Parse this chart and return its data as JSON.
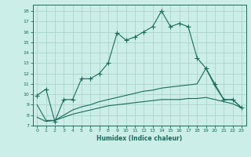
{
  "xlabel": "Humidex (Indice chaleur)",
  "background_color": "#cceee8",
  "grid_color": "#aad4cc",
  "line_color": "#1a6b5a",
  "xlim": [
    -0.5,
    23.5
  ],
  "ylim": [
    7,
    18.6
  ],
  "xticks": [
    0,
    1,
    2,
    3,
    4,
    5,
    6,
    7,
    8,
    9,
    10,
    11,
    12,
    13,
    14,
    15,
    16,
    17,
    18,
    19,
    20,
    21,
    22,
    23
  ],
  "yticks": [
    7,
    8,
    9,
    10,
    11,
    12,
    13,
    14,
    15,
    16,
    17,
    18
  ],
  "line1_x": [
    0,
    1,
    2,
    3,
    4,
    5,
    6,
    7,
    8,
    9,
    10,
    11,
    12,
    13,
    14,
    15,
    16,
    17,
    18,
    19,
    20,
    21,
    22,
    23
  ],
  "line1_y": [
    9.9,
    10.5,
    7.4,
    9.5,
    9.5,
    11.5,
    11.5,
    12.0,
    13.0,
    15.9,
    15.2,
    15.5,
    16.0,
    16.5,
    18.0,
    16.5,
    16.8,
    16.5,
    13.5,
    12.5,
    11.0,
    9.5,
    9.5,
    8.7
  ],
  "line2_x": [
    0,
    1,
    2,
    3,
    4,
    5,
    6,
    7,
    8,
    9,
    10,
    11,
    12,
    13,
    14,
    15,
    16,
    17,
    18,
    19,
    20,
    21,
    22,
    23
  ],
  "line2_y": [
    9.0,
    7.5,
    7.5,
    8.0,
    8.5,
    8.8,
    9.0,
    9.3,
    9.5,
    9.7,
    9.9,
    10.1,
    10.3,
    10.4,
    10.6,
    10.7,
    10.8,
    10.9,
    11.0,
    12.5,
    10.8,
    9.5,
    9.5,
    8.7
  ],
  "line3_x": [
    0,
    1,
    2,
    3,
    4,
    5,
    6,
    7,
    8,
    9,
    10,
    11,
    12,
    13,
    14,
    15,
    16,
    17,
    18,
    19,
    20,
    21,
    22,
    23
  ],
  "line3_y": [
    7.8,
    7.4,
    7.5,
    7.8,
    8.1,
    8.3,
    8.5,
    8.7,
    8.9,
    9.0,
    9.1,
    9.2,
    9.3,
    9.4,
    9.5,
    9.5,
    9.5,
    9.6,
    9.6,
    9.7,
    9.5,
    9.3,
    9.1,
    8.7
  ]
}
